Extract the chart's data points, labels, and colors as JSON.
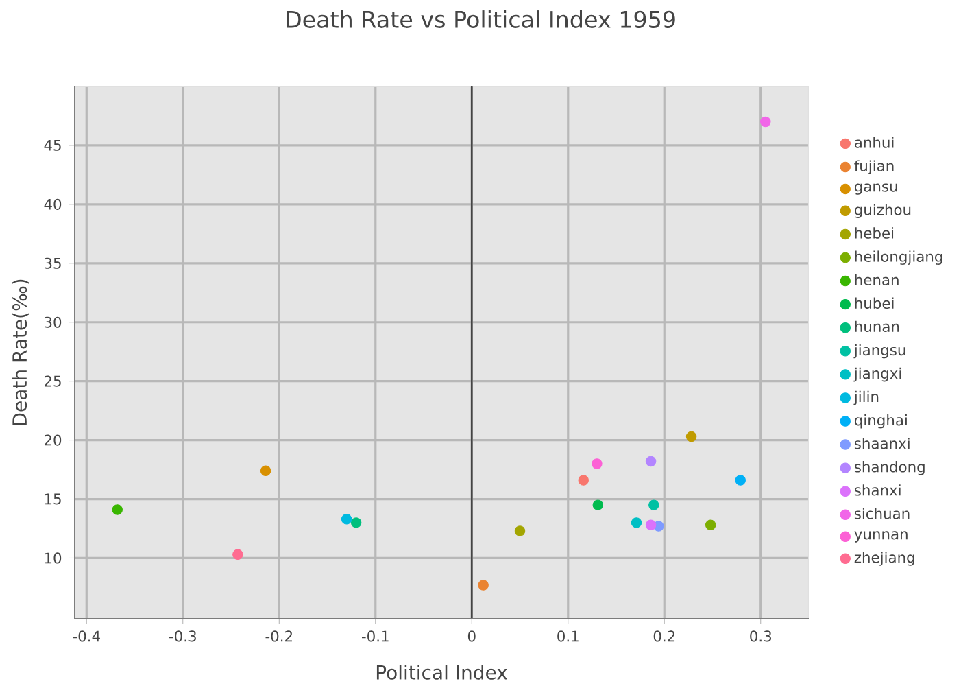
{
  "chart_data": {
    "type": "scatter",
    "title": "Death Rate vs Political Index 1959",
    "xlabel": "Political Index",
    "ylabel": "Death Rate(‰)",
    "xlim": [
      -0.413,
      0.35
    ],
    "ylim": [
      4.85,
      50
    ],
    "xticks": [
      -0.4,
      -0.3,
      -0.2,
      -0.1,
      0,
      0.1,
      0.2,
      0.3
    ],
    "yticks": [
      10,
      15,
      20,
      25,
      30,
      35,
      40,
      45
    ],
    "grid": true,
    "legend": "right",
    "marker": "circle",
    "ref_lines": [
      {
        "axis": "x",
        "value": 0,
        "color": "#444444"
      }
    ],
    "series": [
      {
        "name": "anhui",
        "color": "#f8766d",
        "x": [
          0.116
        ],
        "values": [
          16.6
        ]
      },
      {
        "name": "fujian",
        "color": "#ea8331",
        "x": [
          0.012
        ],
        "values": [
          7.7
        ]
      },
      {
        "name": "gansu",
        "color": "#d89000",
        "x": [
          -0.214
        ],
        "values": [
          17.4
        ]
      },
      {
        "name": "guizhou",
        "color": "#c09b00",
        "x": [
          0.228
        ],
        "values": [
          20.3
        ]
      },
      {
        "name": "hebei",
        "color": "#a3a500",
        "x": [
          0.05
        ],
        "values": [
          12.3
        ]
      },
      {
        "name": "heilongjiang",
        "color": "#7cae00",
        "x": [
          0.248
        ],
        "values": [
          12.8
        ]
      },
      {
        "name": "henan",
        "color": "#39b600",
        "x": [
          -0.368
        ],
        "values": [
          14.1
        ]
      },
      {
        "name": "hubei",
        "color": "#00bb4e",
        "x": [
          0.131
        ],
        "values": [
          14.5
        ]
      },
      {
        "name": "hunan",
        "color": "#00bf7d",
        "x": [
          -0.12
        ],
        "values": [
          13.0
        ]
      },
      {
        "name": "jiangsu",
        "color": "#00c1a3",
        "x": [
          0.189
        ],
        "values": [
          14.5
        ]
      },
      {
        "name": "jiangxi",
        "color": "#00bfc4",
        "x": [
          0.171
        ],
        "values": [
          13.0
        ]
      },
      {
        "name": "jilin",
        "color": "#00bae0",
        "x": [
          -0.13
        ],
        "values": [
          13.3
        ]
      },
      {
        "name": "qinghai",
        "color": "#00b0f6",
        "x": [
          0.279
        ],
        "values": [
          16.6
        ]
      },
      {
        "name": "shaanxi",
        "color": "#7f9bff",
        "x": [
          0.194
        ],
        "values": [
          12.7
        ]
      },
      {
        "name": "shandong",
        "color": "#b385ff",
        "x": [
          0.186
        ],
        "values": [
          18.2
        ]
      },
      {
        "name": "shanxi",
        "color": "#db72fb",
        "x": [
          0.186
        ],
        "values": [
          12.8
        ]
      },
      {
        "name": "sichuan",
        "color": "#f166e8",
        "x": [
          0.305
        ],
        "values": [
          47.0
        ]
      },
      {
        "name": "yunnan",
        "color": "#fc61d5",
        "x": [
          0.13
        ],
        "values": [
          18.0
        ]
      },
      {
        "name": "zhejiang",
        "color": "#ff6c91",
        "x": [
          -0.243
        ],
        "values": [
          10.3
        ]
      }
    ]
  }
}
